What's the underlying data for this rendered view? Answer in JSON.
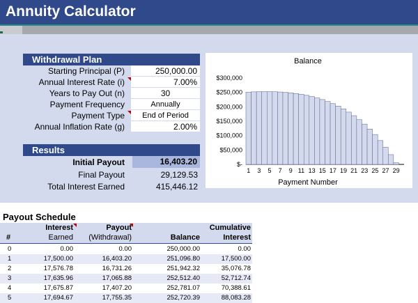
{
  "app": {
    "title": "Annuity Calculator"
  },
  "withdrawal_plan": {
    "header": "Withdrawal Plan",
    "fields": [
      {
        "label": "Starting Principal (P)",
        "value": "250,000.00"
      },
      {
        "label": "Annual Interest Rate (i)",
        "value": "7.00%"
      },
      {
        "label": "Years to Pay Out (n)",
        "value": "30"
      },
      {
        "label": "Payment Frequency",
        "value": "Annually"
      },
      {
        "label": "Payment Type",
        "value": "End of Period"
      },
      {
        "label": "Annual Inflation Rate (g)",
        "value": "2.00%"
      }
    ]
  },
  "results": {
    "header": "Results",
    "initial_payout_label": "Initial Payout",
    "initial_payout_value": "16,403.20",
    "final_payout_label": "Final Payout",
    "final_payout_value": "29,129.53",
    "total_interest_label": "Total Interest Earned",
    "total_interest_value": "415,446.12"
  },
  "chart_data": {
    "type": "bar",
    "title": "Balance",
    "xlabel": "Payment Number",
    "ylabel": "",
    "ylim": [
      0,
      300000
    ],
    "y_ticks": [
      "$300,000",
      "$250,000",
      "$200,000",
      "$150,000",
      "$100,000",
      "$50,000",
      "$-"
    ],
    "x_tick_labels": [
      "1",
      "3",
      "5",
      "7",
      "9",
      "11",
      "13",
      "15",
      "17",
      "19",
      "21",
      "23",
      "25",
      "27",
      "29"
    ],
    "categories": [
      1,
      2,
      3,
      4,
      5,
      6,
      7,
      8,
      9,
      10,
      11,
      12,
      13,
      14,
      15,
      16,
      17,
      18,
      19,
      20,
      21,
      22,
      23,
      24,
      25,
      26,
      27,
      28,
      29,
      30
    ],
    "values": [
      251097,
      251942,
      252512,
      252781,
      252720,
      252297,
      251478,
      250224,
      248495,
      246243,
      243419,
      239967,
      235827,
      230936,
      225225,
      218621,
      211045,
      202411,
      192628,
      181598,
      169215,
      155365,
      139925,
      122765,
      103742,
      82706,
      59493,
      33930,
      5834,
      0
    ],
    "bar_color": "#d4daee",
    "bar_stroke": "#5a5f8a"
  },
  "schedule": {
    "title": "Payout Schedule",
    "headers": {
      "num": "#",
      "interest_1": "Interest",
      "interest_2": "Earned",
      "payout_1": "Payout",
      "payout_2": "(Withdrawal)",
      "balance": "Balance",
      "cumulative_1": "Cumulative",
      "cumulative_2": "Interest"
    },
    "rows": [
      {
        "n": "0",
        "interest": "0.00",
        "payout": "0.00",
        "balance": "250,000.00",
        "cumulative": "0.00"
      },
      {
        "n": "1",
        "interest": "17,500.00",
        "payout": "16,403.20",
        "balance": "251,096.80",
        "cumulative": "17,500.00"
      },
      {
        "n": "2",
        "interest": "17,576.78",
        "payout": "16,731.26",
        "balance": "251,942.32",
        "cumulative": "35,076.78"
      },
      {
        "n": "3",
        "interest": "17,635.96",
        "payout": "17,065.88",
        "balance": "252,512.40",
        "cumulative": "52,712.74"
      },
      {
        "n": "4",
        "interest": "17,675.87",
        "payout": "17,407.20",
        "balance": "252,781.07",
        "cumulative": "70,388.61"
      },
      {
        "n": "5",
        "interest": "17,694.67",
        "payout": "17,755.35",
        "balance": "252,720.39",
        "cumulative": "88,083.28"
      }
    ]
  },
  "colors": {
    "header_blue": "#30498b",
    "panel": "#d4daee",
    "marker_red": "#c00000"
  }
}
